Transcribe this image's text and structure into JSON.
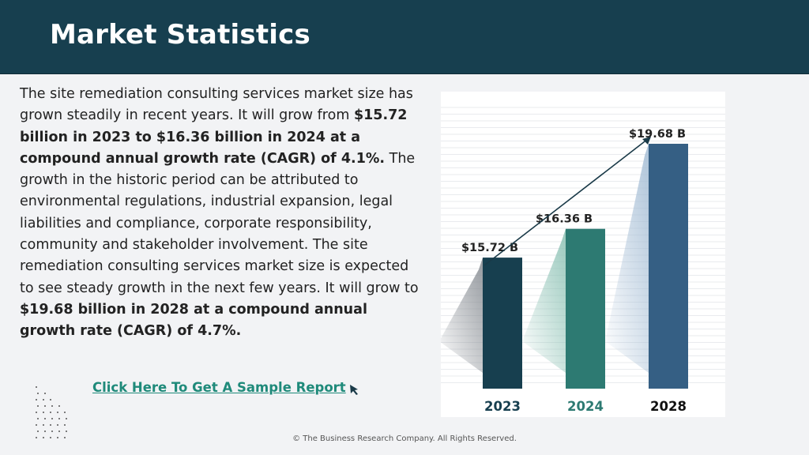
{
  "header": {
    "title": "Market Statistics"
  },
  "body": {
    "p1": "The site remediation consulting services market size has grown steadily in recent years. It will grow from ",
    "b1": "$15.72 billion in 2023 to $16.36 billion in 2024 at a compound annual growth rate (CAGR) of 4.1%.",
    "p2": "  The growth in the historic period can be attributed to environmental regulations, industrial expansion, legal liabilities and compliance, corporate responsibility, community and stakeholder involvement. The site remediation consulting services market size is expected to see steady growth in the next few years. It will grow to ",
    "b2": "$19.68 billion in 2028 at a compound annual growth rate (CAGR) of 4.7%."
  },
  "cta": {
    "label": "Click Here To Get A Sample Report"
  },
  "icons": {
    "cursor": "cursor-arrow-icon",
    "dots": "dot-grid-decoration"
  },
  "footer": {
    "text": "© The Business Research Company. All Rights Reserved."
  },
  "chart_data": {
    "type": "bar",
    "categories": [
      "2023",
      "2024",
      "2028"
    ],
    "values": [
      15.72,
      16.36,
      19.68
    ],
    "value_labels": [
      "$15.72 B",
      "$16.36 B",
      "$19.68 B"
    ],
    "ylim": [
      0,
      22
    ],
    "colors": [
      "#173f4f",
      "#2d7a72",
      "#355f84"
    ],
    "category_label_colors": [
      "#173f4f",
      "#2d7a72",
      "#111111"
    ],
    "trend_arrow": true,
    "grid": true
  }
}
